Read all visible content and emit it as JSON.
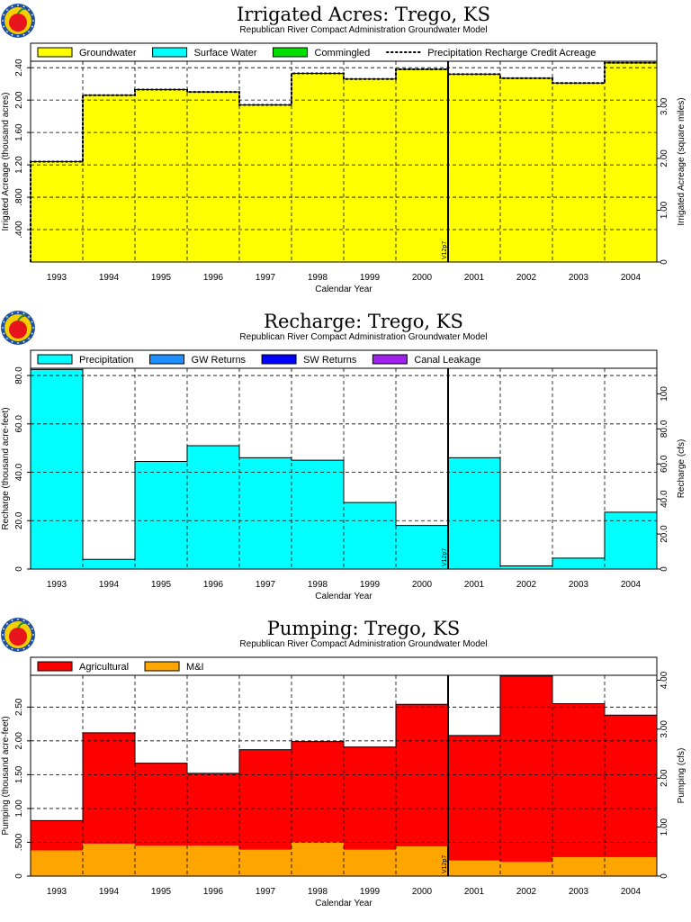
{
  "colors": {
    "groundwater": "#ffff00",
    "surface_water": "#00ffff",
    "commingled": "#00e000",
    "precipitation": "#00ffff",
    "gw_returns": "#1e90ff",
    "sw_returns": "#0000ff",
    "canal_leakage": "#a020f0",
    "agricultural": "#ff0000",
    "mi": "#ffa500",
    "logo_red": "#e8141b",
    "logo_blue": "#1f4fa0",
    "logo_yellow": "#f4d000"
  },
  "logo": {
    "name": "apple-logo-icon"
  },
  "panels": [
    {
      "title": "Irrigated Acres: Trego, KS",
      "subtitle": "Republican River Compact Administration Groundwater Model",
      "xlabel": "Calendar Year",
      "ylabel_left": "Irrigated Acreage (thousand acres)",
      "ylabel_right": "Irrigated Acreage (square miles)",
      "marker_label": "V12p7",
      "legend": [
        {
          "label": "Groundwater",
          "kind": "box",
          "color_key": "groundwater"
        },
        {
          "label": "Surface Water",
          "kind": "box",
          "color_key": "surface_water"
        },
        {
          "label": "Commingled",
          "kind": "box",
          "color_key": "commingled"
        },
        {
          "label": "Precipitation Recharge Credit Acreage",
          "kind": "dash"
        }
      ]
    },
    {
      "title": "Recharge: Trego, KS",
      "subtitle": "Republican River Compact Administration Groundwater Model",
      "xlabel": "Calendar Year",
      "ylabel_left": "Recharge (thousand acre-feet)",
      "ylabel_right": "Recharge (cfs)",
      "marker_label": "V12p7",
      "legend": [
        {
          "label": "Precipitation",
          "kind": "box",
          "color_key": "precipitation"
        },
        {
          "label": "GW Returns",
          "kind": "box",
          "color_key": "gw_returns"
        },
        {
          "label": "SW Returns",
          "kind": "box",
          "color_key": "sw_returns"
        },
        {
          "label": "Canal Leakage",
          "kind": "box",
          "color_key": "canal_leakage"
        }
      ]
    },
    {
      "title": "Pumping: Trego, KS",
      "subtitle": "Republican River Compact Administration Groundwater Model",
      "xlabel": "Calendar Year",
      "ylabel_left": "Pumping (thousand acre-feet)",
      "ylabel_right": "Pumping (cfs)",
      "marker_label": "V12p7",
      "legend": [
        {
          "label": "Agricultural",
          "kind": "box",
          "color_key": "agricultural"
        },
        {
          "label": "M&I",
          "kind": "box",
          "color_key": "mi"
        }
      ]
    }
  ],
  "chart_data": [
    {
      "type": "area",
      "title": "Irrigated Acres: Trego, KS",
      "xlabel": "Calendar Year",
      "ylabel": "Irrigated Acreage (thousand acres)",
      "y2label": "Irrigated Acreage (square miles)",
      "categories": [
        "1993",
        "1994",
        "1995",
        "1996",
        "1997",
        "1998",
        "1999",
        "2000",
        "2001",
        "2002",
        "2003",
        "2004"
      ],
      "yticks": [
        ".400",
        ".800",
        "1.20",
        "1.60",
        "2.00",
        "2.40"
      ],
      "ytick_values": [
        0.4,
        0.8,
        1.2,
        1.6,
        2.0,
        2.4
      ],
      "y2ticks": [
        "0",
        "1.00",
        "2.00",
        "3.00"
      ],
      "y2tick_values": [
        0,
        1,
        2,
        3
      ],
      "ylim": [
        0,
        2.48
      ],
      "y2lim": [
        0,
        3.875
      ],
      "series": [
        {
          "name": "Groundwater",
          "color_key": "groundwater",
          "values": [
            1.24,
            2.06,
            2.13,
            2.1,
            1.94,
            2.33,
            2.26,
            2.38,
            2.32,
            2.27,
            2.21,
            2.46
          ]
        },
        {
          "name": "Surface Water",
          "color_key": "surface_water",
          "values": [
            0,
            0,
            0,
            0,
            0,
            0,
            0,
            0,
            0,
            0,
            0,
            0
          ]
        },
        {
          "name": "Commingled",
          "color_key": "commingled",
          "values": [
            0,
            0,
            0,
            0,
            0,
            0,
            0,
            0,
            0,
            0,
            0,
            0
          ]
        }
      ],
      "line": {
        "name": "Precipitation Recharge Credit Acreage",
        "values": [
          1.24,
          2.06,
          2.13,
          2.1,
          1.94,
          2.33,
          2.26,
          2.38,
          2.32,
          2.27,
          2.21,
          2.46
        ]
      },
      "marker_after": "2000",
      "grid": true,
      "legend_position": "top"
    },
    {
      "type": "area",
      "title": "Recharge: Trego, KS",
      "xlabel": "Calendar Year",
      "ylabel": "Recharge (thousand acre-feet)",
      "y2label": "Recharge (cfs)",
      "categories": [
        "1993",
        "1994",
        "1995",
        "1996",
        "1997",
        "1998",
        "1999",
        "2000",
        "2001",
        "2002",
        "2003",
        "2004"
      ],
      "yticks": [
        "0",
        "20.0",
        "40.0",
        "60.0",
        "80.0"
      ],
      "ytick_values": [
        0,
        20,
        40,
        60,
        80
      ],
      "y2ticks": [
        "0",
        "20.0",
        "40.0",
        "60.0",
        "80.0",
        "100"
      ],
      "y2tick_values": [
        0,
        20,
        40,
        60,
        80,
        100
      ],
      "ylim": [
        0,
        83
      ],
      "y2lim": [
        0,
        114.6
      ],
      "series": [
        {
          "name": "Precipitation",
          "color_key": "precipitation",
          "values": [
            82.5,
            4.0,
            44.5,
            51.0,
            46.0,
            45.0,
            27.5,
            18.0,
            46.0,
            1.0,
            4.5,
            23.5
          ]
        },
        {
          "name": "GW Returns",
          "color_key": "gw_returns",
          "values": [
            0,
            0,
            0,
            0,
            0,
            0,
            0,
            0,
            0,
            0.3,
            0,
            0
          ]
        },
        {
          "name": "SW Returns",
          "color_key": "sw_returns",
          "values": [
            0,
            0,
            0,
            0,
            0,
            0,
            0,
            0,
            0,
            0,
            0,
            0
          ]
        },
        {
          "name": "Canal Leakage",
          "color_key": "canal_leakage",
          "values": [
            0,
            0,
            0,
            0,
            0,
            0,
            0,
            0,
            0,
            0,
            0,
            0
          ]
        }
      ],
      "marker_after": "2000",
      "grid": true,
      "legend_position": "top"
    },
    {
      "type": "area",
      "title": "Pumping: Trego, KS",
      "xlabel": "Calendar Year",
      "ylabel": "Pumping (thousand acre-feet)",
      "y2label": "Pumping (cfs)",
      "categories": [
        "1993",
        "1994",
        "1995",
        "1996",
        "1997",
        "1998",
        "1999",
        "2000",
        "2001",
        "2002",
        "2003",
        "2004"
      ],
      "yticks": [
        "0",
        ".500",
        "1.00",
        "1.50",
        "2.00",
        "2.50"
      ],
      "ytick_values": [
        0,
        0.5,
        1.0,
        1.5,
        2.0,
        2.5
      ],
      "y2ticks": [
        "0",
        "1.00",
        "2.00",
        "3.00",
        "4.00"
      ],
      "y2tick_values": [
        0,
        1,
        2,
        3,
        4
      ],
      "ylim": [
        0,
        2.97
      ],
      "y2lim": [
        0,
        4.1
      ],
      "series": [
        {
          "name": "M&I",
          "color_key": "mi",
          "values": [
            0.38,
            0.48,
            0.45,
            0.45,
            0.39,
            0.5,
            0.39,
            0.44,
            0.23,
            0.21,
            0.28,
            0.28
          ]
        },
        {
          "name": "Agricultural",
          "color_key": "agricultural",
          "values": [
            0.44,
            1.64,
            1.22,
            1.07,
            1.48,
            1.49,
            1.52,
            2.1,
            1.85,
            2.75,
            2.27,
            2.1
          ]
        }
      ],
      "marker_after": "2000",
      "grid": true,
      "legend_position": "top"
    }
  ]
}
